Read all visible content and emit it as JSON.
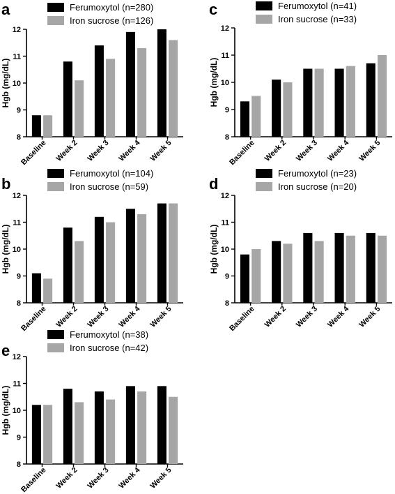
{
  "colors": {
    "ferumoxytol": "#000000",
    "iron_sucrose": "#a6a6a6",
    "axis": "#000000"
  },
  "chart_data": [
    {
      "panel": "a",
      "type": "bar",
      "categories": [
        "Baseline",
        "Week 2",
        "Week 3",
        "Week 4",
        "Week 5"
      ],
      "series": [
        {
          "name": "Ferumoxytol (n=280)",
          "values": [
            8.8,
            10.8,
            11.4,
            11.9,
            12.0
          ]
        },
        {
          "name": "Iron sucrose (n=126)",
          "values": [
            8.8,
            10.1,
            10.9,
            11.3,
            11.6
          ]
        }
      ],
      "ylabel": "Hgb (mg/dL)",
      "ylim": [
        8,
        12
      ],
      "yticks": [
        "8",
        "9",
        "10",
        "11",
        "12"
      ],
      "grid": false,
      "legend": "top-left"
    },
    {
      "panel": "c",
      "type": "bar",
      "categories": [
        "Baseline",
        "Week 2",
        "Week 3",
        "Week 4",
        "Week 5"
      ],
      "series": [
        {
          "name": "Ferumoxytol (n=41)",
          "values": [
            9.3,
            10.1,
            10.5,
            10.5,
            10.7
          ]
        },
        {
          "name": "Iron sucrose (n=33)",
          "values": [
            9.5,
            10.0,
            10.5,
            10.6,
            11.0
          ]
        }
      ],
      "ylabel": "Hgb (mg/dL)",
      "ylim": [
        8,
        12
      ],
      "yticks": [
        "8",
        "9",
        "10",
        "11",
        "12"
      ],
      "grid": false,
      "legend": "top-left"
    },
    {
      "panel": "b",
      "type": "bar",
      "categories": [
        "Baseline",
        "Week 2",
        "Week 3",
        "Week 4",
        "Week 5"
      ],
      "series": [
        {
          "name": "Ferumoxytol (n=104)",
          "values": [
            9.1,
            10.8,
            11.2,
            11.5,
            11.7
          ]
        },
        {
          "name": "Iron sucrose (n=59)",
          "values": [
            8.9,
            10.3,
            11.0,
            11.3,
            11.7
          ]
        }
      ],
      "ylabel": "Hgb (mg/dL)",
      "ylim": [
        8,
        12
      ],
      "yticks": [
        "8",
        "9",
        "10",
        "11",
        "12"
      ],
      "grid": false,
      "legend": "top-left"
    },
    {
      "panel": "d",
      "type": "bar",
      "categories": [
        "Baseline",
        "Week 2",
        "Week 3",
        "Week 4",
        "Week 5"
      ],
      "series": [
        {
          "name": "Ferumoxytol (n=23)",
          "values": [
            9.8,
            10.3,
            10.6,
            10.6,
            10.6
          ]
        },
        {
          "name": "Iron sucrose (n=20)",
          "values": [
            10.0,
            10.2,
            10.3,
            10.5,
            10.5
          ]
        }
      ],
      "ylabel": "Hgb (mg/dL)",
      "ylim": [
        8,
        12
      ],
      "yticks": [
        "8",
        "9",
        "10",
        "11",
        "12"
      ],
      "grid": false,
      "legend": "top-left"
    },
    {
      "panel": "e",
      "type": "bar",
      "categories": [
        "Baseline",
        "Week 2",
        "Week 3",
        "Week 4",
        "Week 5"
      ],
      "series": [
        {
          "name": "Ferumoxytol (n=38)",
          "values": [
            10.2,
            10.8,
            10.7,
            10.9,
            10.9
          ]
        },
        {
          "name": "Iron sucrose (n=42)",
          "values": [
            10.2,
            10.3,
            10.4,
            10.7,
            10.5
          ]
        }
      ],
      "ylabel": "Hgb (mg/dL)",
      "ylim": [
        8,
        12
      ],
      "yticks": [
        "8",
        "9",
        "10",
        "11",
        "12"
      ],
      "grid": false,
      "legend": "top-left"
    }
  ]
}
